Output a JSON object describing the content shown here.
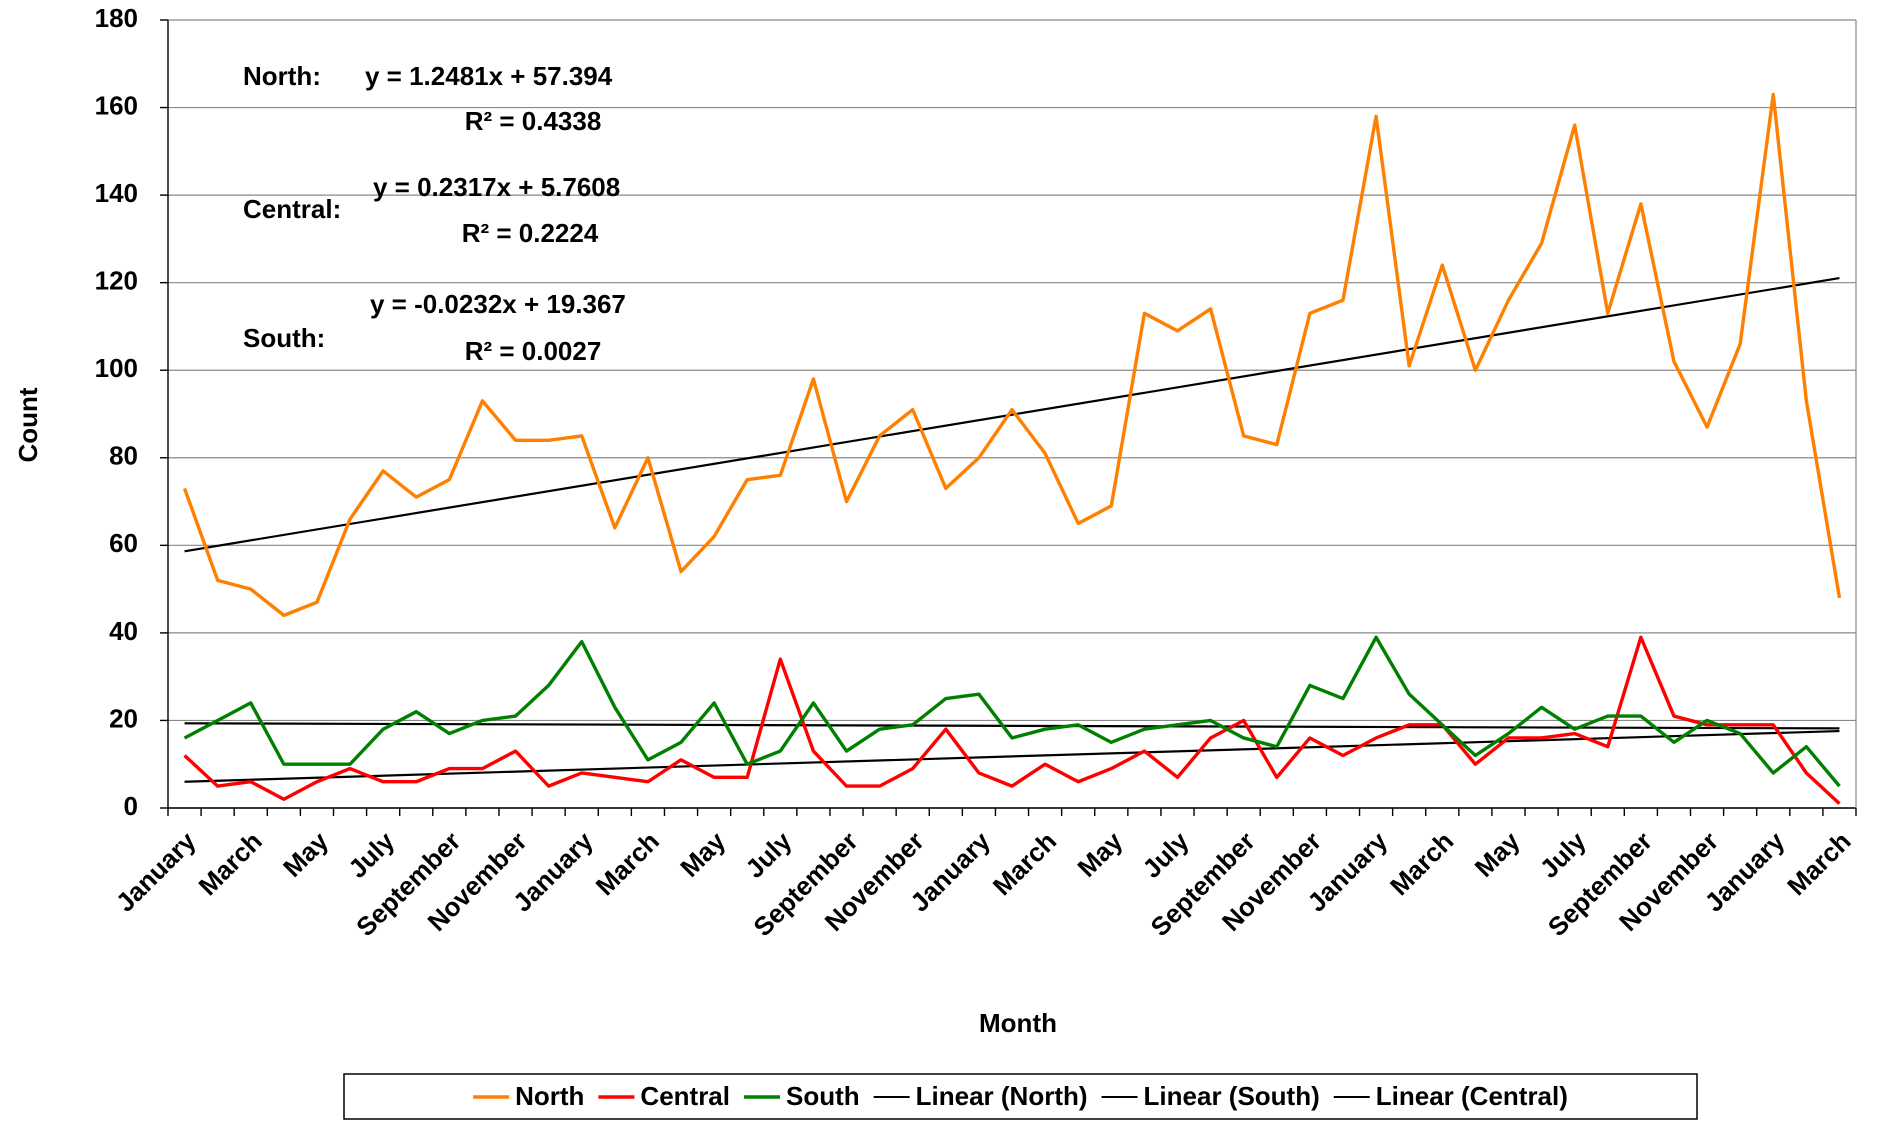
{
  "chart_data": {
    "type": "line",
    "x_label": "Month",
    "y_label": "Count",
    "categories": [
      "January",
      null,
      "March",
      null,
      "May",
      null,
      "July",
      null,
      "September",
      null,
      "November",
      null,
      "January",
      null,
      "March",
      null,
      "May",
      null,
      "July",
      null,
      "September",
      null,
      "November",
      null,
      "January",
      null,
      "March",
      null,
      "May",
      null,
      "July",
      null,
      "September",
      null,
      "November",
      null,
      "January",
      null,
      "March",
      null,
      "May",
      null,
      "July",
      null,
      "September",
      null,
      "November",
      null,
      "January",
      null,
      "March"
    ],
    "series": [
      {
        "name": "North",
        "color": "#ff7f00",
        "values": [
          73,
          52,
          50,
          44,
          47,
          66,
          77,
          71,
          75,
          93,
          84,
          84,
          85,
          64,
          80,
          54,
          62,
          75,
          76,
          98,
          70,
          85,
          91,
          73,
          80,
          91,
          81,
          65,
          69,
          113,
          109,
          114,
          85,
          83,
          113,
          116,
          158,
          101,
          124,
          100,
          116,
          129,
          156,
          113,
          138,
          102,
          87,
          106,
          163,
          93,
          48
        ]
      },
      {
        "name": "Central",
        "color": "#ff0000",
        "values": [
          12,
          5,
          6,
          2,
          6,
          9,
          6,
          6,
          9,
          9,
          13,
          5,
          8,
          7,
          6,
          11,
          7,
          7,
          34,
          13,
          5,
          5,
          9,
          18,
          8,
          5,
          10,
          6,
          9,
          13,
          7,
          16,
          20,
          7,
          16,
          12,
          16,
          19,
          19,
          10,
          16,
          16,
          17,
          14,
          39,
          21,
          19,
          19,
          19,
          8,
          1
        ]
      },
      {
        "name": "South",
        "color": "#008000",
        "values": [
          16,
          20,
          24,
          10,
          10,
          10,
          18,
          22,
          17,
          20,
          21,
          28,
          38,
          23,
          11,
          15,
          24,
          10,
          13,
          24,
          13,
          18,
          19,
          25,
          26,
          16,
          18,
          19,
          15,
          18,
          19,
          20,
          16,
          14,
          28,
          25,
          39,
          26,
          19,
          12,
          17,
          23,
          18,
          21,
          21,
          15,
          20,
          17,
          8,
          14,
          5
        ]
      }
    ],
    "trendlines": [
      {
        "name": "Linear (North)",
        "color": "#000000",
        "slope": 1.2481,
        "intercept": 57.394
      },
      {
        "name": "Linear (South)",
        "color": "#000000",
        "slope": -0.0232,
        "intercept": 19.367
      },
      {
        "name": "Linear (Central)",
        "color": "#000000",
        "slope": 0.2317,
        "intercept": 5.7608
      }
    ],
    "annotations": [
      {
        "label": "North:",
        "equation": "y = 1.2481x + 57.394",
        "r2": "R² = 0.4338"
      },
      {
        "label": "Central:",
        "equation": "y = 0.2317x + 5.7608",
        "r2": "R² = 0.2224"
      },
      {
        "label": "South:",
        "equation": "y = -0.0232x + 19.367",
        "r2": "R² = 0.0027"
      }
    ],
    "ylim": [
      0,
      180
    ],
    "yticks": [
      0,
      20,
      40,
      60,
      80,
      100,
      120,
      140,
      160,
      180
    ],
    "grid": true,
    "legend": "bottom"
  }
}
